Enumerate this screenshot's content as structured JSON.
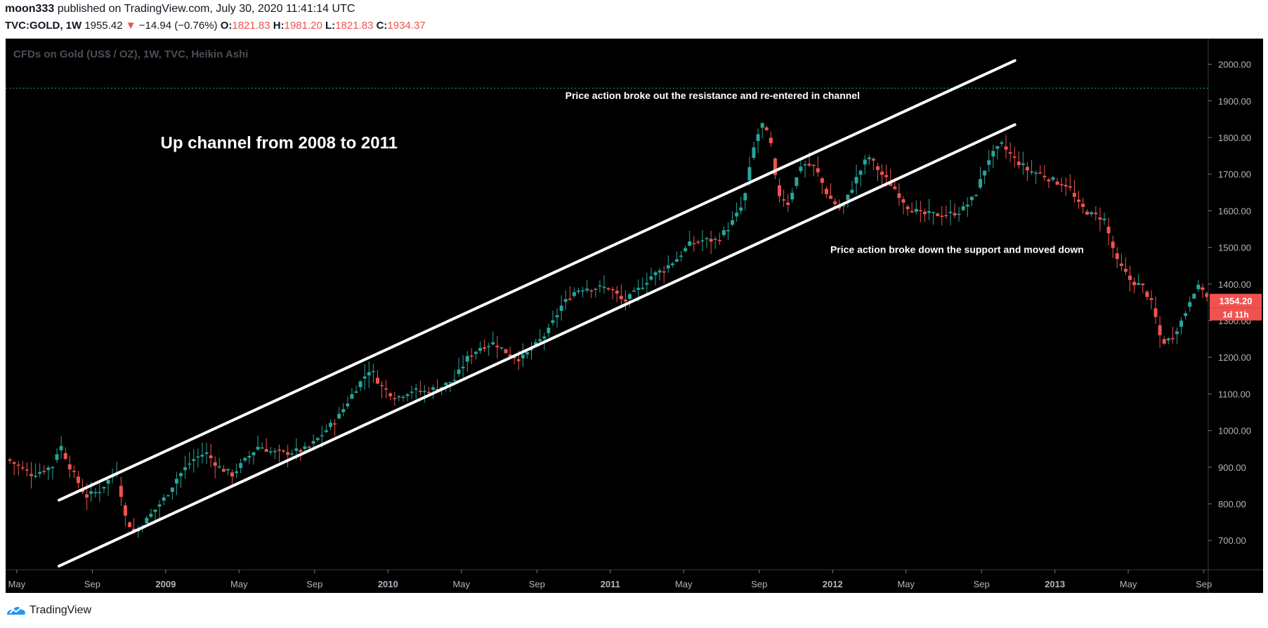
{
  "header": {
    "author": "moon333",
    "published_text": "published on TradingView.com, July 30, 2020 11:41:14 UTC",
    "symbol": "TVC:GOLD, 1W",
    "last": "1955.42",
    "change_arrow": "▼",
    "change": "−14.94 (−0.76%)",
    "open_label": "O:",
    "open": "1821.83",
    "high_label": "H:",
    "high": "1981.20",
    "low_label": "L:",
    "low": "1821.83",
    "close_label": "C:",
    "close": "1934.37"
  },
  "footer": {
    "brand": "TradingView"
  },
  "colors": {
    "up": "#26a69a",
    "down": "#ef5350",
    "bg": "#000000",
    "text_dim": "#787b86"
  },
  "chart_data": {
    "type": "candlestick",
    "title": "CFDs on Gold (US$ / OZ), 1W, TVC, Heikin Ashi",
    "ylim": [
      620,
      2070
    ],
    "y_ticks": [
      700,
      800,
      900,
      1000,
      1100,
      1200,
      1300,
      1400,
      1500,
      1600,
      1700,
      1800,
      1900,
      2000
    ],
    "y_tick_labels": [
      "700.00",
      "800.00",
      "900.00",
      "1000.00",
      "1100.00",
      "1200.00",
      "1300.00",
      "1400.00",
      "1500.00",
      "1600.00",
      "1700.00",
      "1800.00",
      "1900.00",
      "2000.00"
    ],
    "x_ticks": [
      {
        "t": 2008.33,
        "label": "May",
        "bold": false
      },
      {
        "t": 2008.67,
        "label": "Sep",
        "bold": false
      },
      {
        "t": 2009.0,
        "label": "2009",
        "bold": true
      },
      {
        "t": 2009.33,
        "label": "May",
        "bold": false
      },
      {
        "t": 2009.67,
        "label": "Sep",
        "bold": false
      },
      {
        "t": 2010.0,
        "label": "2010",
        "bold": true
      },
      {
        "t": 2010.33,
        "label": "May",
        "bold": false
      },
      {
        "t": 2010.67,
        "label": "Sep",
        "bold": false
      },
      {
        "t": 2011.0,
        "label": "2011",
        "bold": true
      },
      {
        "t": 2011.33,
        "label": "May",
        "bold": false
      },
      {
        "t": 2011.67,
        "label": "Sep",
        "bold": false
      },
      {
        "t": 2012.0,
        "label": "2012",
        "bold": true
      },
      {
        "t": 2012.33,
        "label": "May",
        "bold": false
      },
      {
        "t": 2012.67,
        "label": "Sep",
        "bold": false
      },
      {
        "t": 2013.0,
        "label": "2013",
        "bold": true
      },
      {
        "t": 2013.33,
        "label": "May",
        "bold": false
      },
      {
        "t": 2013.67,
        "label": "Sep",
        "bold": false
      }
    ],
    "xlim": [
      2008.28,
      2013.69
    ],
    "price_line": 1934.37,
    "last_price_label": "1354.20",
    "countdown_label": "1d 11h",
    "last_price": 1354.2,
    "channel_lines": [
      {
        "name": "upper",
        "t1": 2008.52,
        "p1": 810,
        "t2": 2012.82,
        "p2": 2010
      },
      {
        "name": "lower",
        "t1": 2008.52,
        "p1": 630,
        "t2": 2012.82,
        "p2": 1835
      }
    ],
    "annotations": [
      {
        "text": "Up channel from 2008 to 2011",
        "t": 2009.51,
        "p": 1770,
        "size": "large"
      },
      {
        "text": "Price action broke out the resistance and re-entered in channel",
        "t": 2011.46,
        "p": 1905,
        "size": "small"
      },
      {
        "text": "Price action broke down the support and moved down",
        "t": 2012.56,
        "p": 1485,
        "size": "small"
      }
    ],
    "price_path": [
      [
        2008.28,
        925
      ],
      [
        2008.4,
        880
      ],
      [
        2008.5,
        905
      ],
      [
        2008.52,
        970
      ],
      [
        2008.57,
        900
      ],
      [
        2008.64,
        820
      ],
      [
        2008.7,
        835
      ],
      [
        2008.78,
        890
      ],
      [
        2008.82,
        760
      ],
      [
        2008.86,
        720
      ],
      [
        2008.92,
        760
      ],
      [
        2009.0,
        820
      ],
      [
        2009.05,
        870
      ],
      [
        2009.12,
        920
      ],
      [
        2009.18,
        940
      ],
      [
        2009.24,
        900
      ],
      [
        2009.3,
        880
      ],
      [
        2009.36,
        920
      ],
      [
        2009.42,
        960
      ],
      [
        2009.48,
        940
      ],
      [
        2009.56,
        940
      ],
      [
        2009.64,
        950
      ],
      [
        2009.72,
        1000
      ],
      [
        2009.78,
        1040
      ],
      [
        2009.85,
        1110
      ],
      [
        2009.92,
        1170
      ],
      [
        2009.97,
        1120
      ],
      [
        2010.04,
        1090
      ],
      [
        2010.1,
        1110
      ],
      [
        2010.16,
        1105
      ],
      [
        2010.24,
        1120
      ],
      [
        2010.3,
        1140
      ],
      [
        2010.36,
        1200
      ],
      [
        2010.42,
        1230
      ],
      [
        2010.48,
        1240
      ],
      [
        2010.54,
        1210
      ],
      [
        2010.6,
        1195
      ],
      [
        2010.66,
        1230
      ],
      [
        2010.72,
        1270
      ],
      [
        2010.78,
        1340
      ],
      [
        2010.84,
        1380
      ],
      [
        2010.88,
        1390
      ],
      [
        2010.94,
        1390
      ],
      [
        2011.0,
        1390
      ],
      [
        2011.06,
        1350
      ],
      [
        2011.12,
        1380
      ],
      [
        2011.18,
        1420
      ],
      [
        2011.24,
        1440
      ],
      [
        2011.3,
        1470
      ],
      [
        2011.36,
        1510
      ],
      [
        2011.42,
        1520
      ],
      [
        2011.48,
        1520
      ],
      [
        2011.54,
        1560
      ],
      [
        2011.6,
        1620
      ],
      [
        2011.64,
        1760
      ],
      [
        2011.68,
        1840
      ],
      [
        2011.72,
        1790
      ],
      [
        2011.75,
        1650
      ],
      [
        2011.8,
        1620
      ],
      [
        2011.86,
        1730
      ],
      [
        2011.92,
        1720
      ],
      [
        2011.98,
        1640
      ],
      [
        2012.04,
        1600
      ],
      [
        2012.1,
        1680
      ],
      [
        2012.16,
        1750
      ],
      [
        2012.22,
        1700
      ],
      [
        2012.28,
        1660
      ],
      [
        2012.34,
        1610
      ],
      [
        2012.4,
        1590
      ],
      [
        2012.46,
        1590
      ],
      [
        2012.52,
        1590
      ],
      [
        2012.58,
        1600
      ],
      [
        2012.64,
        1640
      ],
      [
        2012.7,
        1740
      ],
      [
        2012.76,
        1780
      ],
      [
        2012.82,
        1740
      ],
      [
        2012.88,
        1710
      ],
      [
        2012.94,
        1700
      ],
      [
        2013.0,
        1680
      ],
      [
        2013.06,
        1670
      ],
      [
        2013.1,
        1620
      ],
      [
        2013.16,
        1590
      ],
      [
        2013.22,
        1580
      ],
      [
        2013.28,
        1460
      ],
      [
        2013.34,
        1410
      ],
      [
        2013.4,
        1390
      ],
      [
        2013.44,
        1340
      ],
      [
        2013.48,
        1240
      ],
      [
        2013.52,
        1250
      ],
      [
        2013.58,
        1310
      ],
      [
        2013.62,
        1380
      ],
      [
        2013.66,
        1395
      ],
      [
        2013.69,
        1354
      ]
    ]
  }
}
